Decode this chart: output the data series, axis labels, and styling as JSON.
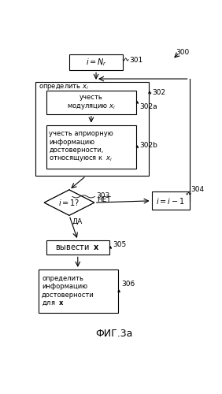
{
  "title": "ФИГ.3а",
  "background_color": "#ffffff",
  "box_301_text": "i = N_r",
  "box_302a_text": "учесть\nмодуляцию x_i",
  "box_302b_text": "учесть априорную\nинформацию\nдостоверности,\nотносящуюся к  x_i",
  "box_303_text": "i = 1?",
  "box_304_text": "i = i -1",
  "box_305_text": "вывести  x",
  "box_306_text": "определить\nинформацию\nдостоверности\nдля  x",
  "box_302_toplabel": "определить x_i",
  "yes_label": "ДА",
  "no_label": "НЕТ",
  "lbl_300": "300",
  "lbl_301": "301",
  "lbl_302": "302",
  "lbl_302a": "302a",
  "lbl_302b": "302b",
  "lbl_303": "303",
  "lbl_304": "304",
  "lbl_305": "305",
  "lbl_306": "306",
  "font_size_main": 7.0,
  "font_size_small": 6.5,
  "font_size_label": 6.5,
  "font_size_title": 9.0
}
